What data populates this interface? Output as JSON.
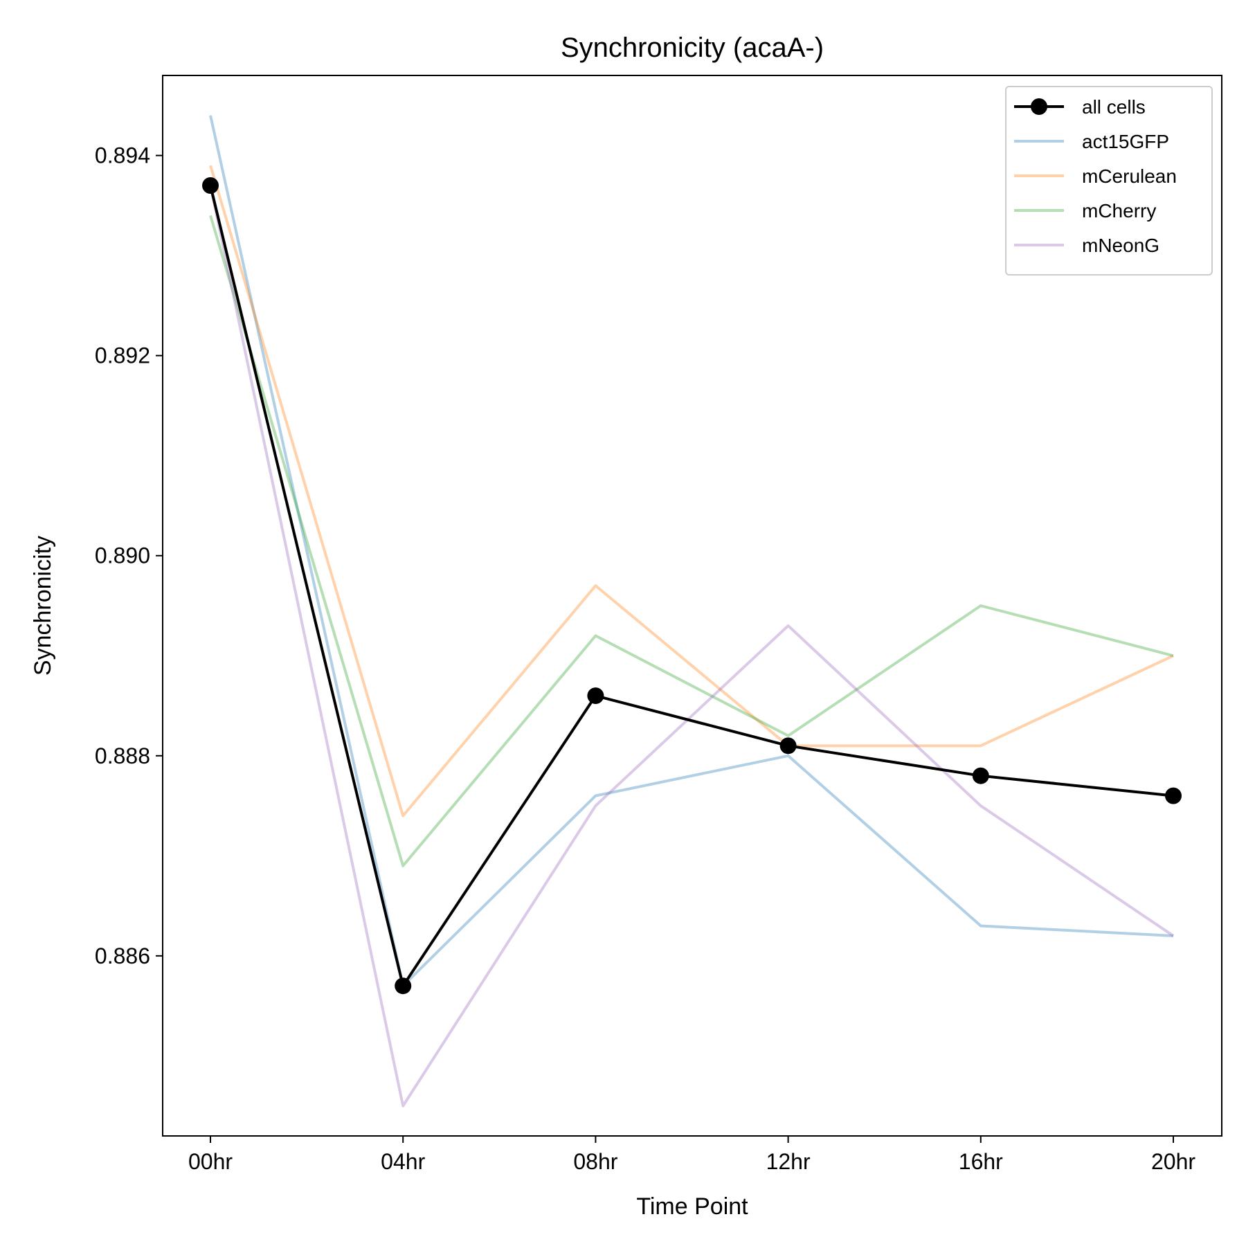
{
  "chart_data": {
    "type": "line",
    "title": "Synchronicity (acaA-)",
    "xlabel": "Time Point",
    "ylabel": "Synchronicity",
    "categories": [
      "00hr",
      "04hr",
      "08hr",
      "12hr",
      "16hr",
      "20hr"
    ],
    "ylim": [
      0.8842,
      0.8948
    ],
    "yticks": [
      0.886,
      0.888,
      0.89,
      0.892,
      0.894
    ],
    "ytick_labels": [
      "0.886",
      "0.888",
      "0.890",
      "0.892",
      "0.894"
    ],
    "grid": false,
    "legend_position": "top-right",
    "series": [
      {
        "name": "all cells",
        "color": "#000000",
        "opacity": 1.0,
        "markers": true,
        "values": [
          0.8937,
          0.8857,
          0.8886,
          0.8881,
          0.8878,
          0.8876
        ]
      },
      {
        "name": "act15GFP",
        "color": "#1f77b4",
        "opacity": 0.35,
        "markers": false,
        "values": [
          0.8944,
          0.8857,
          0.8876,
          0.888,
          0.8863,
          0.8862
        ]
      },
      {
        "name": "mCerulean",
        "color": "#ff7f0e",
        "opacity": 0.35,
        "markers": false,
        "values": [
          0.8939,
          0.8874,
          0.8897,
          0.8881,
          0.8881,
          0.889
        ]
      },
      {
        "name": "mCherry",
        "color": "#2ca02c",
        "opacity": 0.35,
        "markers": false,
        "values": [
          0.8934,
          0.8869,
          0.8892,
          0.8882,
          0.8895,
          0.889
        ]
      },
      {
        "name": "mNeonG",
        "color": "#9467bd",
        "opacity": 0.35,
        "markers": false,
        "values": [
          0.8937,
          0.8845,
          0.8875,
          0.8893,
          0.8875,
          0.8862
        ]
      }
    ]
  }
}
